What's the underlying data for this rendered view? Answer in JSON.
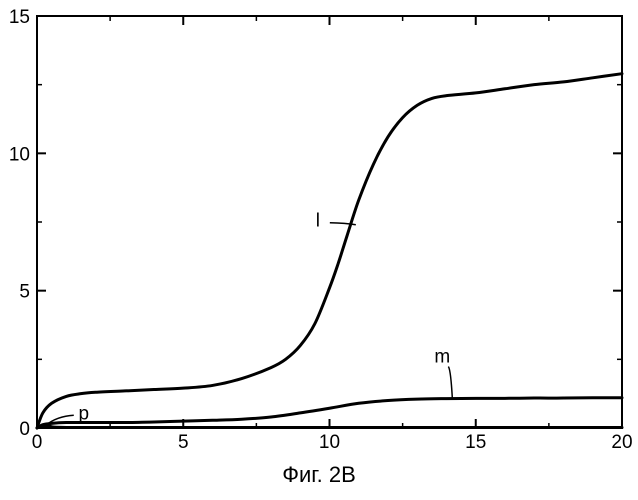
{
  "chart_data": {
    "type": "line",
    "title": "",
    "xlabel": "",
    "ylabel": "",
    "xlim": [
      0,
      20
    ],
    "ylim": [
      0,
      15
    ],
    "x_ticks": [
      0,
      5,
      10,
      15,
      20
    ],
    "y_ticks": [
      0,
      5,
      10,
      15
    ],
    "x_tick_labels": [
      "0",
      "5",
      "10",
      "15",
      "20"
    ],
    "y_tick_labels": [
      "0",
      "5",
      "10",
      "15"
    ],
    "grid": false,
    "legend": "none",
    "line_color": "#000000",
    "series": [
      {
        "name": "l",
        "x": [
          0,
          0.2,
          0.5,
          1.0,
          1.5,
          2,
          3,
          4,
          5,
          6,
          7,
          8,
          8.5,
          9,
          9.5,
          10,
          10.3,
          10.6,
          11,
          11.5,
          12,
          12.5,
          13,
          13.5,
          14,
          15,
          16,
          17,
          18,
          19,
          20
        ],
        "y": [
          0,
          0.55,
          0.9,
          1.15,
          1.25,
          1.3,
          1.35,
          1.4,
          1.45,
          1.55,
          1.8,
          2.2,
          2.5,
          3.0,
          3.8,
          5.1,
          6.0,
          7.0,
          8.3,
          9.6,
          10.6,
          11.3,
          11.75,
          12.0,
          12.1,
          12.2,
          12.35,
          12.5,
          12.6,
          12.75,
          12.9
        ]
      },
      {
        "name": "m",
        "x": [
          0,
          0.2,
          0.5,
          1,
          2,
          3,
          4,
          5,
          6,
          7,
          8,
          9,
          10,
          11,
          12,
          13,
          14,
          15,
          16,
          17,
          18,
          19,
          20
        ],
        "y": [
          0,
          0.12,
          0.17,
          0.2,
          0.2,
          0.2,
          0.22,
          0.25,
          0.28,
          0.32,
          0.4,
          0.55,
          0.72,
          0.9,
          1.0,
          1.05,
          1.07,
          1.08,
          1.08,
          1.09,
          1.09,
          1.1,
          1.1
        ]
      },
      {
        "name": "p",
        "x": [
          0,
          0.15,
          0.3,
          0.45,
          0.6,
          1.0,
          2,
          4,
          6,
          8,
          10,
          12,
          14,
          16,
          18,
          20
        ],
        "y": [
          0,
          0.08,
          0.09,
          0.06,
          0.03,
          0.02,
          0.02,
          0.02,
          0.02,
          0.02,
          0.02,
          0.02,
          0.02,
          0.02,
          0.02,
          0.02
        ]
      }
    ],
    "annotations": [
      {
        "text": "l",
        "series": "l",
        "x": 10.9,
        "y": 7.4
      },
      {
        "text": "m",
        "series": "m",
        "x": 14.2,
        "y": 1.07
      },
      {
        "text": "p",
        "series": "p",
        "x": 0.3,
        "y": 0.1
      }
    ],
    "caption": "Фиг. 2В"
  }
}
